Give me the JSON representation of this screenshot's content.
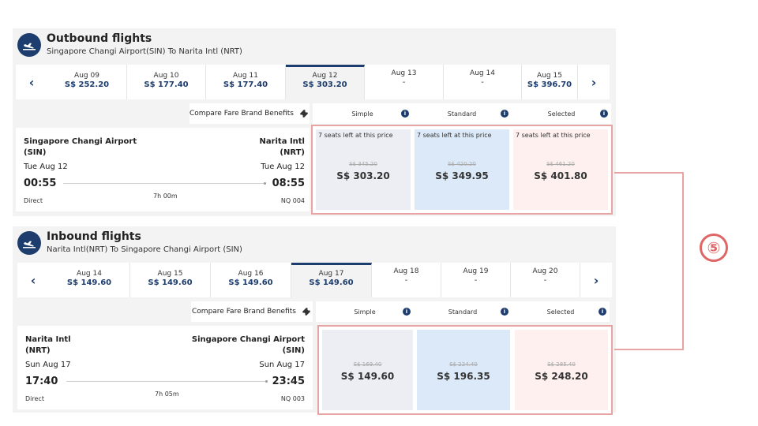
{
  "outbound": {
    "title": "Outbound flights",
    "subtitle": "Singapore Changi Airport(SIN) To Narita Intl (NRT)",
    "dates": [
      {
        "date": "Aug 09",
        "price": "S$ 252.20"
      },
      {
        "date": "Aug 10",
        "price": "S$ 177.40"
      },
      {
        "date": "Aug 11",
        "price": "S$ 177.40"
      },
      {
        "date": "Aug 12",
        "price": "S$ 303.20",
        "selected": true
      },
      {
        "date": "Aug 13",
        "price": "-"
      },
      {
        "date": "Aug 14",
        "price": "-"
      },
      {
        "date": "Aug 15",
        "price": "S$ 396.70"
      }
    ],
    "compare_label": "Compare Fare Brand Benefits",
    "brands": [
      "Simple",
      "Standard",
      "Selected"
    ],
    "flight": {
      "from": "Singapore Changi Airport",
      "from_code": "(SIN)",
      "to": "Narita Intl",
      "to_code": "(NRT)",
      "dep_date": "Tue Aug 12",
      "arr_date": "Tue Aug 12",
      "dep_time": "00:55",
      "arr_time": "08:55",
      "stops": "Direct",
      "duration": "7h 00m",
      "flight_no": "NQ 004"
    },
    "fares": [
      {
        "seats": "7 seats left at this price",
        "old": "S$ 345.20",
        "price": "S$ 303.20"
      },
      {
        "seats": "7 seats left at this price",
        "old": "S$ 420.20",
        "price": "S$ 349.95"
      },
      {
        "seats": "7 seats left at this price",
        "old": "S$ 461.20",
        "price": "S$ 401.80"
      }
    ]
  },
  "inbound": {
    "title": "Inbound flights",
    "subtitle": "Narita Intl(NRT) To Singapore Changi Airport (SIN)",
    "dates": [
      {
        "date": "Aug 14",
        "price": "S$ 149.60"
      },
      {
        "date": "Aug 15",
        "price": "S$ 149.60"
      },
      {
        "date": "Aug 16",
        "price": "S$ 149.60"
      },
      {
        "date": "Aug 17",
        "price": "S$ 149.60",
        "selected": true
      },
      {
        "date": "Aug 18",
        "price": "-"
      },
      {
        "date": "Aug 19",
        "price": "-"
      },
      {
        "date": "Aug 20",
        "price": "-"
      }
    ],
    "compare_label": "Compare Fare Brand Benefits",
    "brands": [
      "Simple",
      "Standard",
      "Selected"
    ],
    "flight": {
      "from": "Narita Intl",
      "from_code": "(NRT)",
      "to": "Singapore Changi Airport",
      "to_code": "(SIN)",
      "dep_date": "Sun Aug 17",
      "arr_date": "Sun Aug 17",
      "dep_time": "17:40",
      "arr_time": "23:45",
      "stops": "Direct",
      "duration": "7h 05m",
      "flight_no": "NQ 003"
    },
    "fares": [
      {
        "seats": "",
        "old": "S$ 169.40",
        "price": "S$ 149.60"
      },
      {
        "seats": "",
        "old": "S$ 224.40",
        "price": "S$ 196.35"
      },
      {
        "seats": "",
        "old": "S$ 285.40",
        "price": "S$ 248.20"
      }
    ]
  },
  "nav": {
    "prev": "‹",
    "next": "›"
  },
  "info_glyph": "i",
  "annotation": {
    "label": "⑤"
  },
  "colors": {
    "brand": "#1d3d6e",
    "simple": "#eceef3",
    "standard": "#dbe9f8",
    "selected": "#fdf0ee",
    "highlight": "#e8a3a3"
  }
}
